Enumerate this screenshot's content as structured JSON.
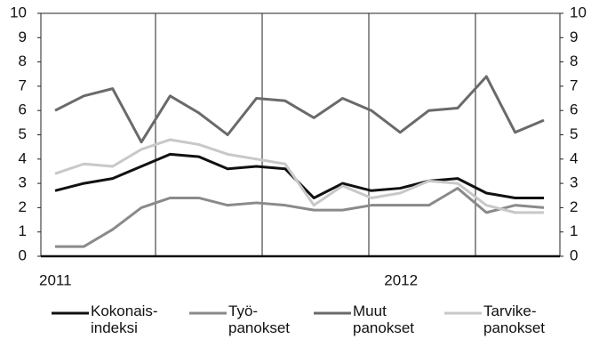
{
  "chart_data": {
    "type": "line",
    "categories": [
      "2011",
      null,
      null,
      null,
      null,
      null,
      null,
      null,
      null,
      null,
      null,
      null,
      "2012",
      null,
      null,
      null,
      null,
      null
    ],
    "series": [
      {
        "name": "Kokonais-\nindeksi",
        "color": "#111111",
        "values": [
          2.7,
          3.0,
          3.2,
          3.7,
          4.2,
          4.1,
          3.6,
          3.7,
          3.6,
          2.4,
          3.0,
          2.7,
          2.8,
          3.1,
          3.2,
          2.6,
          2.4,
          2.4
        ]
      },
      {
        "name": "Työ-\npanokset",
        "color": "#8a8a8a",
        "values": [
          0.4,
          0.4,
          1.1,
          2.0,
          2.4,
          2.4,
          2.1,
          2.2,
          2.1,
          1.9,
          1.9,
          2.1,
          2.1,
          2.1,
          2.8,
          1.8,
          2.1,
          2.0
        ]
      },
      {
        "name": "Muut\npanokset",
        "color": "#6a6a6a",
        "values": [
          6.0,
          6.6,
          6.9,
          4.7,
          6.6,
          5.9,
          5.0,
          6.5,
          6.4,
          5.7,
          6.5,
          6.0,
          5.1,
          6.0,
          6.1,
          7.4,
          5.1,
          5.6
        ]
      },
      {
        "name": "Tarvike-\npanokset",
        "color": "#c8c8c8",
        "values": [
          3.4,
          3.8,
          3.7,
          4.4,
          4.8,
          4.6,
          4.2,
          4.0,
          3.8,
          2.1,
          2.9,
          2.4,
          2.6,
          3.1,
          3.0,
          2.1,
          1.8,
          1.8
        ]
      }
    ],
    "ylim": [
      0,
      10
    ],
    "yticks": [
      0,
      1,
      2,
      3,
      4,
      5,
      6,
      7,
      8,
      9,
      10
    ],
    "y2lim": [
      0,
      10
    ],
    "y2ticks": [
      0,
      1,
      2,
      3,
      4,
      5,
      6,
      7,
      8,
      9,
      10
    ]
  }
}
